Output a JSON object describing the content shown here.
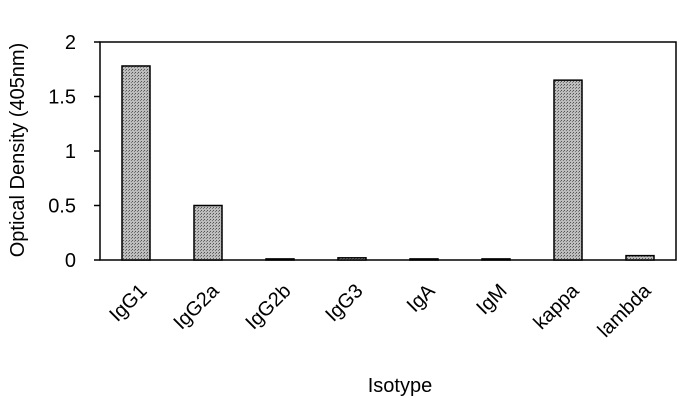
{
  "chart_data": {
    "type": "bar",
    "x_label": "Isotype",
    "y_label": "Optical Density (405nm)",
    "categories": [
      "IgG1",
      "IgG2a",
      "IgG2b",
      "IgG3",
      "IgA",
      "IgM",
      "kappa",
      "lambda"
    ],
    "values": [
      1.78,
      0.5,
      0.01,
      0.02,
      0.01,
      0.01,
      1.65,
      0.04
    ],
    "color": "#a0a0a0",
    "ylim": [
      0,
      2
    ],
    "yticks": [
      0,
      0.5,
      1,
      1.5,
      2
    ],
    "grid": false
  }
}
